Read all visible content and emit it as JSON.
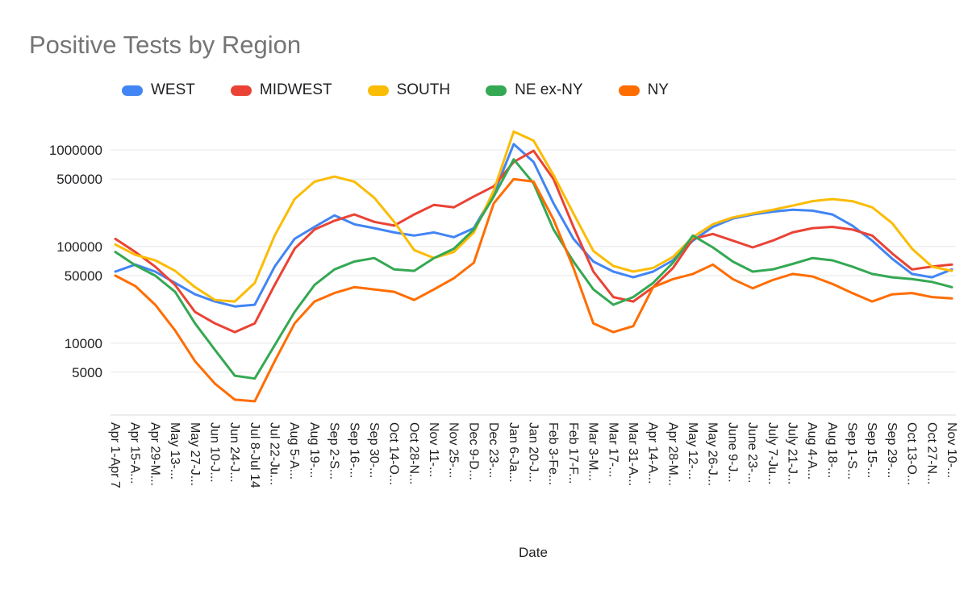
{
  "chart_data": {
    "type": "line",
    "title": "Positive Tests by Region",
    "xlabel": "Date",
    "ylabel": "",
    "y_scale": "log",
    "grid": true,
    "legend_position": "top",
    "y_ticks": [
      5000,
      10000,
      50000,
      100000,
      500000,
      1000000
    ],
    "ylim": [
      1800,
      2000000
    ],
    "categories": [
      "Apr 1-Apr 7",
      "Apr 15-A...",
      "Apr 29-M...",
      "May 13-...",
      "May 27-J...",
      "Jun 10-J...",
      "Jun 24-J...",
      "Jul 8-Jul 14",
      "Jul 22-Ju...",
      "Aug 5-A...",
      "Aug 19-...",
      "Sep 2-S...",
      "Sep 16-...",
      "Sep 30-...",
      "Oct 14-O...",
      "Oct 28-N...",
      "Nov 11-...",
      "Nov 25-...",
      "Dec 9-D...",
      "Dec 23-...",
      "Jan 6-Ja...",
      "Jan 20-J...",
      "Feb 3-Fe...",
      "Feb 17-F...",
      "Mar 3-M...",
      "Mar 17-...",
      "Mar 31-A...",
      "Apr 14-A...",
      "Apr 28-M...",
      "May 12-...",
      "May 26-J...",
      "June 9-J...",
      "June 23-...",
      "July 7-Ju...",
      "July 21-J...",
      "Aug 4-A...",
      "Aug 18-...",
      "Sep 1-S...",
      "Sep 15-...",
      "Sep 29-...",
      "Oct 13-O...",
      "Oct 27-N...",
      "Nov 10-..."
    ],
    "series": [
      {
        "name": "WEST",
        "color": "#4285F4",
        "values": [
          55000,
          65000,
          55000,
          42000,
          32000,
          27000,
          24000,
          25000,
          62000,
          120000,
          160000,
          210000,
          170000,
          155000,
          140000,
          130000,
          140000,
          125000,
          155000,
          350000,
          1150000,
          750000,
          280000,
          120000,
          70000,
          55000,
          48000,
          55000,
          72000,
          115000,
          160000,
          195000,
          215000,
          230000,
          240000,
          235000,
          215000,
          165000,
          115000,
          75000,
          52000,
          48000,
          58000
        ]
      },
      {
        "name": "MIDWEST",
        "color": "#EA4335",
        "values": [
          120000,
          88000,
          62000,
          40000,
          21000,
          16000,
          13000,
          16000,
          40000,
          95000,
          150000,
          185000,
          215000,
          180000,
          165000,
          215000,
          270000,
          255000,
          330000,
          420000,
          750000,
          980000,
          500000,
          160000,
          55000,
          30000,
          27000,
          38000,
          60000,
          120000,
          135000,
          115000,
          98000,
          115000,
          140000,
          155000,
          160000,
          150000,
          130000,
          85000,
          58000,
          62000,
          65000
        ]
      },
      {
        "name": "SOUTH",
        "color": "#FBBC04",
        "values": [
          105000,
          82000,
          72000,
          56000,
          38000,
          28000,
          27000,
          42000,
          130000,
          310000,
          470000,
          530000,
          470000,
          320000,
          180000,
          92000,
          76000,
          88000,
          140000,
          380000,
          1550000,
          1250000,
          550000,
          220000,
          90000,
          63000,
          55000,
          60000,
          78000,
          125000,
          170000,
          200000,
          220000,
          240000,
          265000,
          295000,
          310000,
          295000,
          255000,
          175000,
          95000,
          62000,
          56000
        ]
      },
      {
        "name": "NE ex-NY",
        "color": "#34A853",
        "values": [
          88000,
          64000,
          50000,
          34000,
          16000,
          8500,
          4600,
          4300,
          9500,
          21000,
          40000,
          58000,
          70000,
          76000,
          58000,
          56000,
          76000,
          95000,
          150000,
          330000,
          800000,
          450000,
          150000,
          70000,
          36000,
          25000,
          30000,
          42000,
          68000,
          130000,
          98000,
          70000,
          55000,
          58000,
          66000,
          76000,
          72000,
          62000,
          52000,
          48000,
          46000,
          43000,
          38000
        ]
      },
      {
        "name": "NY",
        "color": "#FF6D01",
        "values": [
          50000,
          39000,
          25000,
          13500,
          6500,
          3800,
          2600,
          2500,
          6500,
          16000,
          27000,
          33000,
          38000,
          36000,
          34000,
          28000,
          36000,
          47000,
          68000,
          280000,
          500000,
          470000,
          190000,
          60000,
          16000,
          13000,
          15000,
          38000,
          46000,
          52000,
          65000,
          46000,
          37000,
          45000,
          52000,
          49000,
          41000,
          33000,
          27000,
          32000,
          33000,
          30000,
          29000
        ]
      }
    ]
  },
  "styles": {
    "title_color": "#757575",
    "axis_label_color": "#202124",
    "grid_color": "#e6e6e6",
    "baseline_color": "#d9d9d9",
    "background": "#ffffff"
  }
}
